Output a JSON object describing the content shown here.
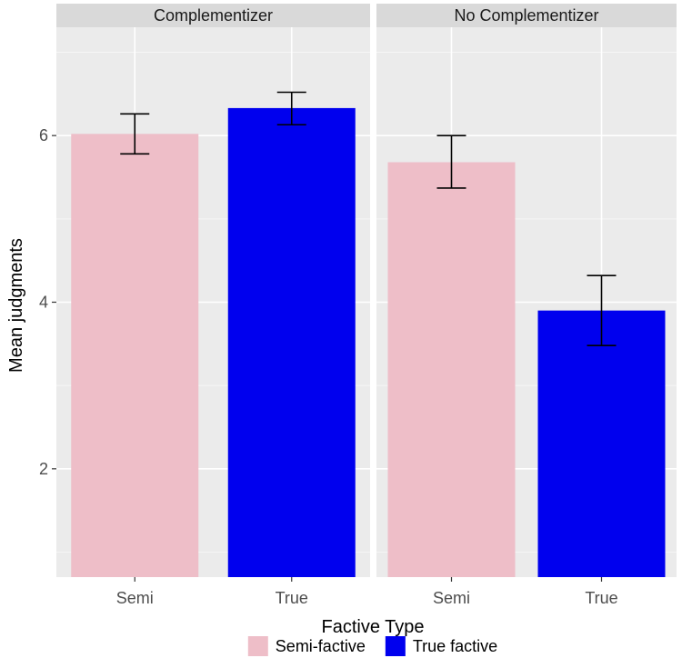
{
  "chart_data": {
    "type": "bar",
    "xlabel": "Factive Type",
    "ylabel": "Mean judgments",
    "ylim": [
      0.7,
      7.3
    ],
    "y_major_ticks": [
      2,
      4,
      6
    ],
    "y_minor_ticks": [
      1,
      3,
      5,
      7
    ],
    "grid": true,
    "legend_position": "bottom",
    "categories": [
      "Semi",
      "True"
    ],
    "panels": [
      {
        "strip": "Complementizer",
        "bars": [
          {
            "category": "Semi",
            "value": 6.02,
            "err_low": 5.78,
            "err_high": 6.26,
            "color": "#eebec8"
          },
          {
            "category": "True",
            "value": 6.33,
            "err_low": 6.13,
            "err_high": 6.52,
            "color": "#0000ee"
          }
        ]
      },
      {
        "strip": "No Complementizer",
        "bars": [
          {
            "category": "Semi",
            "value": 5.68,
            "err_low": 5.37,
            "err_high": 6.0,
            "color": "#eebec8"
          },
          {
            "category": "True",
            "value": 3.9,
            "err_low": 3.48,
            "err_high": 4.32,
            "color": "#0000ee"
          }
        ]
      }
    ],
    "legend": [
      {
        "label": "Semi-factive",
        "color": "#eebec8"
      },
      {
        "label": "True factive",
        "color": "#0000ee"
      }
    ]
  }
}
